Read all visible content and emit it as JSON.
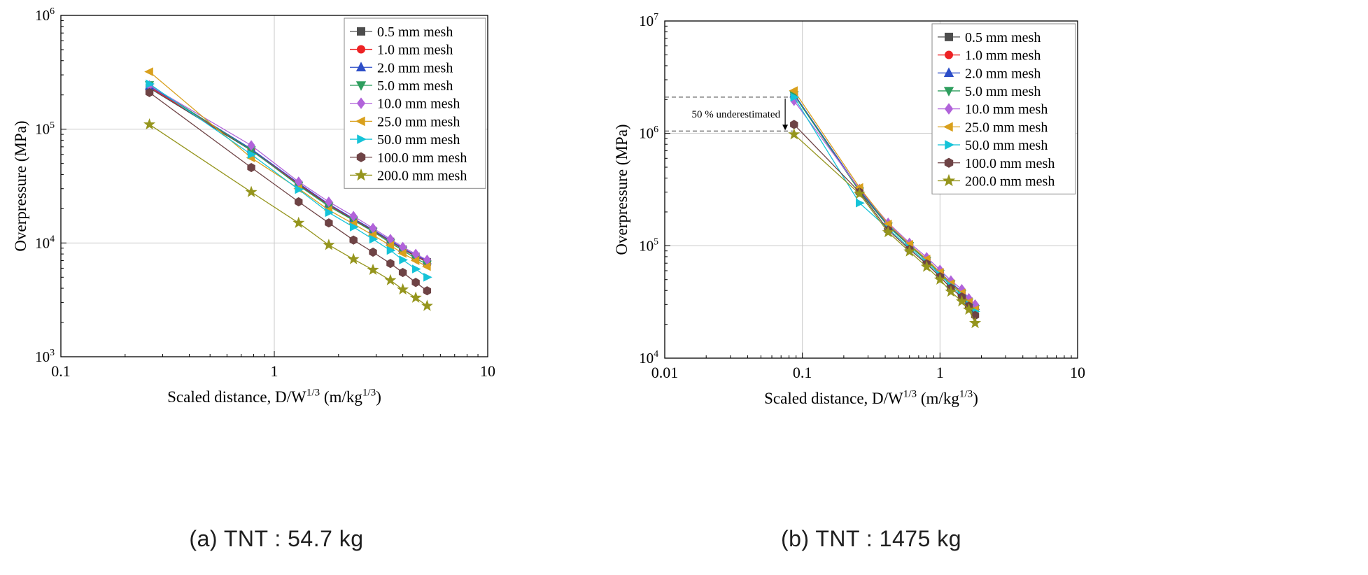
{
  "figure": {
    "captions": {
      "a": "(a) TNT : 54.7 kg",
      "b": "(b) TNT : 1475 kg"
    }
  },
  "legend_labels": [
    "0.5 mm mesh",
    "1.0 mm mesh",
    "2.0 mm mesh",
    "5.0 mm mesh",
    "10.0 mm mesh",
    "25.0 mm mesh",
    "50.0 mm mesh",
    "100.0 mm mesh",
    "200.0 mm mesh"
  ],
  "colors": {
    "grid": "#c9c9c9",
    "axis": "#000000",
    "annotation": "#333333"
  },
  "chart_data": [
    {
      "type": "line",
      "id": "a",
      "caption": "(a) TNT : 54.7 kg",
      "ylabel": "Overpressure (MPa)",
      "xlabel_text": "Scaled distance, D/W^(1/3) (m/kg^(1/3))",
      "xlabel_parts": [
        [
          "Scaled distance, D/W",
          false
        ],
        [
          "1/3",
          true
        ],
        [
          " (m/kg",
          false
        ],
        [
          "1/3",
          true
        ],
        [
          ")",
          false
        ]
      ],
      "x_scale": "log",
      "y_scale": "log",
      "xlim": [
        0.1,
        10
      ],
      "ylim": [
        1000.0,
        1000000.0
      ],
      "x_ticks": {
        "values": [
          0.1,
          1,
          10
        ],
        "labels": [
          "0.1",
          "1",
          "10"
        ]
      },
      "y_tick_exponents": [
        3,
        4,
        5,
        6
      ],
      "grid": true,
      "legend_position": "top-right",
      "x": [
        0.26,
        0.78,
        1.3,
        1.8,
        2.35,
        2.9,
        3.5,
        4.0,
        4.6,
        5.2
      ],
      "series": [
        {
          "name": "0.5 mm mesh",
          "color": "#4d4d4d",
          "marker": "square",
          "values": [
            230000.0,
            65000.0,
            32500.0,
            21500.0,
            16000.0,
            12800.0,
            10300.0,
            8800.0,
            7600.0,
            6800.0
          ]
        },
        {
          "name": "1.0 mm mesh",
          "color": "#ed2224",
          "marker": "circle",
          "values": [
            235000.0,
            66000.0,
            33000.0,
            21800.0,
            16200.0,
            13000.0,
            10400.0,
            8900.0,
            7700.0,
            6900.0
          ]
        },
        {
          "name": "2.0 mm mesh",
          "color": "#2d4ec8",
          "marker": "triangle-up",
          "values": [
            240000.0,
            67000.0,
            33500.0,
            22000.0,
            16400.0,
            13100.0,
            10500.0,
            9000.0,
            7800.0,
            7000.0
          ]
        },
        {
          "name": "5.0 mm mesh",
          "color": "#2e9e5e",
          "marker": "triangle-down",
          "values": [
            245000.0,
            65500.0,
            32000.0,
            21000.0,
            15800.0,
            12600.0,
            10000.0,
            8600.0,
            7300.0,
            6500.0
          ]
        },
        {
          "name": "10.0 mm mesh",
          "color": "#b163da",
          "marker": "diamond",
          "values": [
            242000.0,
            72000.0,
            34500.0,
            23000.0,
            17200.0,
            13500.0,
            10800.0,
            9200.0,
            8000.0,
            7100.0
          ]
        },
        {
          "name": "25.0 mm mesh",
          "color": "#d9a01d",
          "marker": "triangle-left",
          "values": [
            320000.0,
            56000.0,
            30000.0,
            19500.0,
            14700.0,
            11700.0,
            9500.0,
            8100.0,
            7000.0,
            6200.0
          ]
        },
        {
          "name": "50.0 mm mesh",
          "color": "#15c3d8",
          "marker": "triangle-right",
          "values": [
            250000.0,
            60000.0,
            29500.0,
            18500.0,
            13800.0,
            10800.0,
            8600.0,
            7100.0,
            5900.0,
            5000.0
          ]
        },
        {
          "name": "100.0 mm mesh",
          "color": "#6e4345",
          "marker": "hexagon",
          "values": [
            210000.0,
            46000.0,
            23000.0,
            15000.0,
            10600.0,
            8300.0,
            6600.0,
            5500.0,
            4500.0,
            3800.0
          ]
        },
        {
          "name": "200.0 mm mesh",
          "color": "#95951d",
          "marker": "star",
          "values": [
            110000.0,
            28000.0,
            15000.0,
            9600.0,
            7200.0,
            5800.0,
            4700.0,
            3900.0,
            3300.0,
            2800.0
          ]
        }
      ]
    },
    {
      "type": "line",
      "id": "b",
      "caption": "(b) TNT : 1475 kg",
      "ylabel": "Overpressure (MPa)",
      "xlabel_text": "Scaled distance, D/W^(1/3) (m/kg^(1/3))",
      "xlabel_parts": [
        [
          "Scaled distance, D/W",
          false
        ],
        [
          "1/3",
          true
        ],
        [
          " (m/kg",
          false
        ],
        [
          "1/3",
          true
        ],
        [
          ")",
          false
        ]
      ],
      "x_scale": "log",
      "y_scale": "log",
      "xlim": [
        0.01,
        10
      ],
      "ylim": [
        10000.0,
        10000000.0
      ],
      "x_ticks": {
        "values": [
          0.01,
          0.1,
          1,
          10
        ],
        "labels": [
          "0.01",
          "0.1",
          "1",
          "10"
        ]
      },
      "y_tick_exponents": [
        4,
        5,
        6,
        7
      ],
      "grid": true,
      "legend_position": "top-right",
      "annotation": {
        "text": "50 % underestimated",
        "y_top": 2100000.0,
        "y_bottom": 1050000.0,
        "x_end": 0.085,
        "arrow_x": 0.075
      },
      "x": [
        0.087,
        0.26,
        0.42,
        0.6,
        0.8,
        1.0,
        1.2,
        1.44,
        1.62,
        1.8
      ],
      "series": [
        {
          "name": "0.5 mm mesh",
          "color": "#4d4d4d",
          "marker": "square",
          "values": [
            2200000.0,
            310000.0,
            150000.0,
            100000.0,
            74000.0,
            57000.0,
            46000.0,
            38000.0,
            32000.0,
            28000.0
          ]
        },
        {
          "name": "1.0 mm mesh",
          "color": "#ed2224",
          "marker": "circle",
          "values": [
            2220000.0,
            312000.0,
            151000.0,
            101000.0,
            75000.0,
            57500.0,
            46500.0,
            38500.0,
            32500.0,
            28500.0
          ]
        },
        {
          "name": "2.0 mm mesh",
          "color": "#2d4ec8",
          "marker": "triangle-up",
          "values": [
            2250000.0,
            315000.0,
            152000.0,
            102000.0,
            76000.0,
            58000.0,
            47000.0,
            39000.0,
            33000.0,
            29000.0
          ]
        },
        {
          "name": "5.0 mm mesh",
          "color": "#2e9e5e",
          "marker": "triangle-down",
          "values": [
            2200000.0,
            305000.0,
            149000.0,
            100000.0,
            74000.0,
            56500.0,
            45500.0,
            37500.0,
            31500.0,
            27500.0
          ]
        },
        {
          "name": "10.0 mm mesh",
          "color": "#b163da",
          "marker": "diamond",
          "values": [
            1950000.0,
            320000.0,
            160000.0,
            106000.0,
            79000.0,
            61000.0,
            49000.0,
            41000.0,
            34000.0,
            30000.0
          ]
        },
        {
          "name": "25.0 mm mesh",
          "color": "#d9a01d",
          "marker": "triangle-left",
          "values": [
            2400000.0,
            330000.0,
            156000.0,
            103000.0,
            76000.0,
            58000.0,
            46000.0,
            38000.0,
            31500.0,
            27000.0
          ]
        },
        {
          "name": "50.0 mm mesh",
          "color": "#15c3d8",
          "marker": "triangle-right",
          "values": [
            2100000.0,
            240000.0,
            142000.0,
            96000.0,
            71000.0,
            55000.0,
            44000.0,
            36000.0,
            30000.0,
            26000.0
          ]
        },
        {
          "name": "100.0 mm mesh",
          "color": "#6e4345",
          "marker": "hexagon",
          "values": [
            1200000.0,
            300000.0,
            138000.0,
            93000.0,
            69000.0,
            53000.0,
            42000.0,
            35000.0,
            29000.0,
            24000.0
          ]
        },
        {
          "name": "200.0 mm mesh",
          "color": "#95951d",
          "marker": "star",
          "values": [
            980000.0,
            290000.0,
            132000.0,
            89000.0,
            65000.0,
            50000.0,
            39000.0,
            32000.0,
            27000.0,
            20500.0
          ]
        }
      ]
    }
  ]
}
